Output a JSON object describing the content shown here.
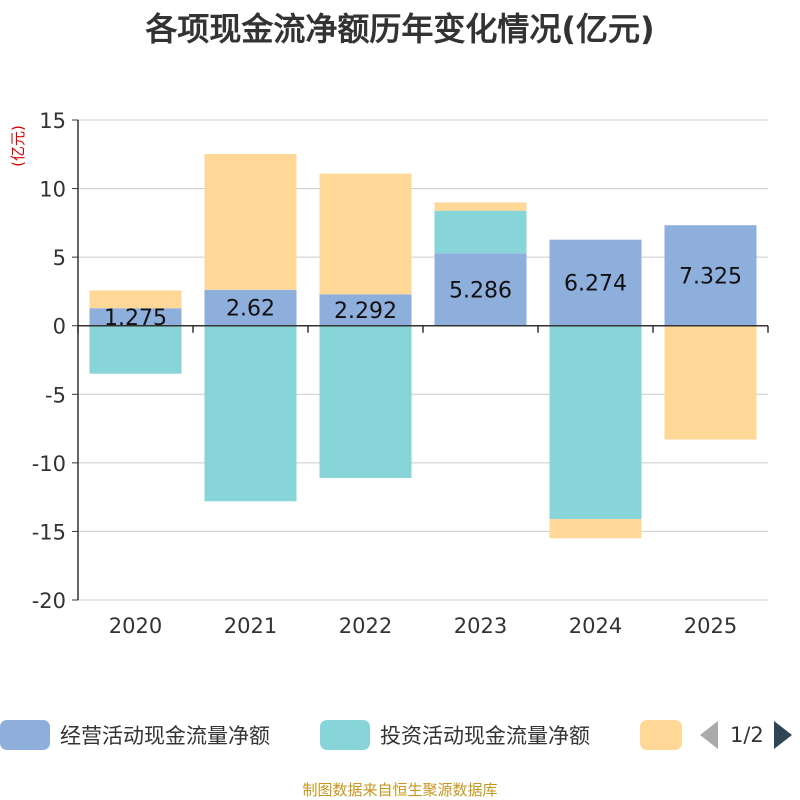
{
  "chart_data": {
    "type": "bar",
    "stacked": true,
    "title": "各项现金流净额历年变化情况(亿元)",
    "ylabel": "(亿元)",
    "ylim": [
      -20,
      15
    ],
    "yticks": [
      15,
      10,
      5,
      0,
      -5,
      -10,
      -15,
      -20
    ],
    "categories": [
      "2020",
      "2021",
      "2022",
      "2023",
      "2024",
      "2025"
    ],
    "series": [
      {
        "name": "经营活动现金流量净额",
        "color": "#8eaedc",
        "values": [
          1.275,
          2.62,
          2.292,
          5.286,
          6.274,
          7.325
        ],
        "labels": [
          "1.275",
          "2.62",
          "2.292",
          "5.286",
          "6.274",
          "7.325"
        ]
      },
      {
        "name": "投资活动现金流量净额",
        "color": "#88d5d9",
        "values": [
          -3.5,
          -12.8,
          -11.1,
          3.1,
          -14.1,
          0
        ]
      },
      {
        "name": "",
        "color": "#ffd898",
        "values": [
          1.3,
          9.9,
          8.8,
          0.6,
          -1.4,
          -8.3
        ]
      }
    ],
    "grid": true,
    "legend_position": "bottom"
  },
  "legend": {
    "pager": "1/2"
  },
  "source": "制图数据来自恒生聚源数据库"
}
